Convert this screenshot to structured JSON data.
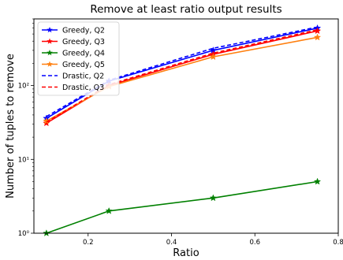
{
  "chart_data": {
    "type": "line",
    "title": "Remove at least ratio output results",
    "xlabel": "Ratio",
    "ylabel": "Number of tuples to remove",
    "xlim": [
      0.07,
      0.8
    ],
    "ylim": [
      1,
      800
    ],
    "yscale": "log",
    "grid": false,
    "legend_position": "top-left",
    "x_ticks": [
      0.2,
      0.4,
      0.6,
      0.8
    ],
    "x_tick_labels": [
      "0.2",
      "0.4",
      "0.6",
      "0.8"
    ],
    "y_ticks": [
      1,
      10,
      100
    ],
    "y_tick_labels": [
      "10⁰",
      "10¹",
      "10²"
    ],
    "x": [
      0.1,
      0.25,
      0.5,
      0.75
    ],
    "series": [
      {
        "name": "Greedy, Q2",
        "values": [
          36,
          115,
          300,
          600
        ],
        "color": "#0000ff",
        "style": "solid",
        "marker": "star"
      },
      {
        "name": "Greedy, Q3",
        "values": [
          31,
          100,
          265,
          550
        ],
        "color": "#ff0000",
        "style": "solid",
        "marker": "star"
      },
      {
        "name": "Greedy, Q4",
        "values": [
          1,
          2,
          3,
          5
        ],
        "color": "#008000",
        "style": "solid",
        "marker": "star"
      },
      {
        "name": "Greedy, Q5",
        "values": [
          33,
          97,
          245,
          450
        ],
        "color": "#ff7f0e",
        "style": "solid",
        "marker": "star"
      },
      {
        "name": "Drastic, Q2",
        "values": [
          38,
          118,
          320,
          620
        ],
        "color": "#0000ff",
        "style": "dashed",
        "marker": "none"
      },
      {
        "name": "Drastic, Q3",
        "values": [
          32,
          103,
          275,
          570
        ],
        "color": "#ff0000",
        "style": "dashed",
        "marker": "none"
      }
    ]
  }
}
